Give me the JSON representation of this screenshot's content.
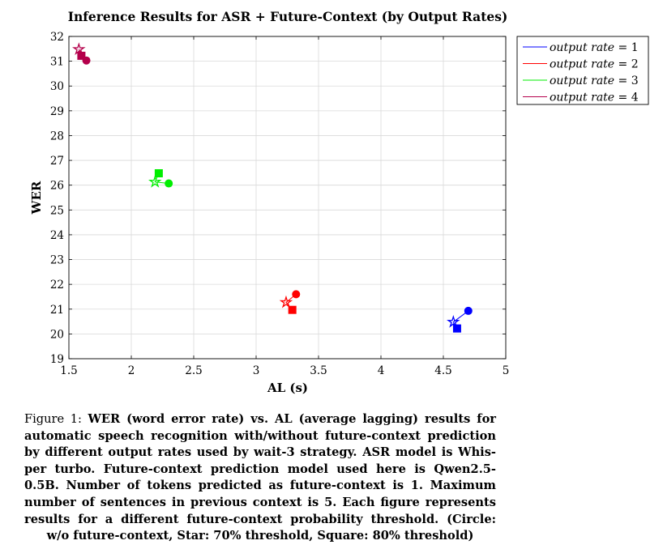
{
  "chart_data": {
    "type": "scatter",
    "title": "Inference Results for ASR + Future-Context (by Output Rates)",
    "xlabel": "AL (s)",
    "ylabel": "WER",
    "xlim": [
      1.5,
      5
    ],
    "ylim": [
      19,
      32
    ],
    "xticks": [
      "1.5",
      "2",
      "2.5",
      "3",
      "3.5",
      "4",
      "4.5",
      "5"
    ],
    "yticks": [
      "19",
      "20",
      "21",
      "22",
      "23",
      "24",
      "25",
      "26",
      "27",
      "28",
      "29",
      "30",
      "31",
      "32"
    ],
    "grid": true,
    "legend_position": "outside-top-right",
    "series": [
      {
        "name": "output rate = 1",
        "legend_parts": [
          "output rate",
          " = 1"
        ],
        "color": "#0000ff",
        "points": [
          {
            "marker": "circle",
            "x": 4.7,
            "y": 20.93
          },
          {
            "marker": "star",
            "x": 4.58,
            "y": 20.48
          },
          {
            "marker": "square",
            "x": 4.61,
            "y": 20.22
          }
        ]
      },
      {
        "name": "output rate = 2",
        "legend_parts": [
          "output rate",
          " = 2"
        ],
        "color": "#ff0000",
        "points": [
          {
            "marker": "circle",
            "x": 3.32,
            "y": 21.6
          },
          {
            "marker": "star",
            "x": 3.24,
            "y": 21.27
          },
          {
            "marker": "square",
            "x": 3.29,
            "y": 20.97
          }
        ]
      },
      {
        "name": "output rate = 3",
        "legend_parts": [
          "output rate",
          " = 3"
        ],
        "color": "#00ee00",
        "points": [
          {
            "marker": "circle",
            "x": 2.3,
            "y": 26.07
          },
          {
            "marker": "star",
            "x": 2.19,
            "y": 26.13
          },
          {
            "marker": "square",
            "x": 2.22,
            "y": 26.48
          }
        ]
      },
      {
        "name": "output rate = 4",
        "legend_parts": [
          "output rate",
          " = 4"
        ],
        "color": "#b4004b",
        "points": [
          {
            "marker": "circle",
            "x": 1.64,
            "y": 31.03
          },
          {
            "marker": "star",
            "x": 1.58,
            "y": 31.48
          },
          {
            "marker": "square",
            "x": 1.6,
            "y": 31.22
          }
        ]
      }
    ]
  },
  "caption": {
    "lines": [
      [
        {
          "t": "Figure 1: ",
          "b": false
        },
        {
          "t": "WER (word error rate) vs. AL (average lagging) results for",
          "b": true
        }
      ],
      [
        {
          "t": "automatic speech recognition with/without future-context prediction",
          "b": true
        }
      ],
      [
        {
          "t": "by different output rates used by wait-3 strategy. ASR model is Whis-",
          "b": true
        }
      ],
      [
        {
          "t": "per turbo. Future-context prediction model used here is Qwen2.5-",
          "b": true
        }
      ],
      [
        {
          "t": "0.5B. Number of tokens predicted as future-context is 1. Maximum",
          "b": true
        }
      ],
      [
        {
          "t": "number of sentences in previous context is 5. Each figure represents",
          "b": true
        }
      ],
      [
        {
          "t": "results for a different future-context probability threshold. (Circle:",
          "b": true
        }
      ],
      [
        {
          "t": "w/o future-context, Star: 70% threshold, Square: 80% threshold)",
          "b": true
        }
      ]
    ]
  }
}
